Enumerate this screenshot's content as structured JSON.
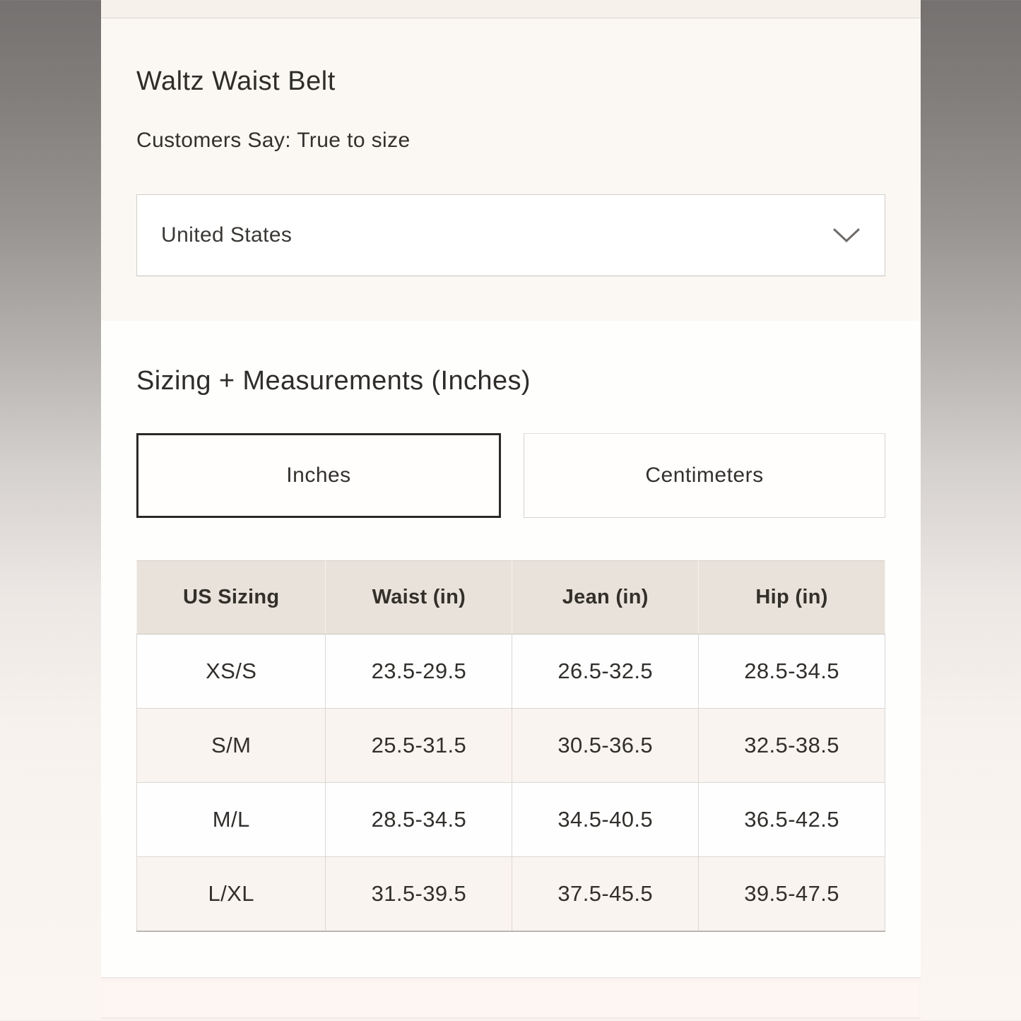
{
  "product": {
    "title": "Waltz Waist Belt",
    "fit_note": "Customers Say: True to size"
  },
  "region_select": {
    "value": "United States",
    "icon": "chevron-down"
  },
  "sizing_section": {
    "heading": "Sizing + Measurements (Inches)",
    "tabs": [
      {
        "label": "Inches",
        "selected": true
      },
      {
        "label": "Centimeters",
        "selected": false
      }
    ]
  },
  "size_table": {
    "columns": [
      "US Sizing",
      "Waist (in)",
      "Jean (in)",
      "Hip (in)"
    ],
    "rows": [
      [
        "XS/S",
        "23.5-29.5",
        "26.5-32.5",
        "28.5-34.5"
      ],
      [
        "S/M",
        "25.5-31.5",
        "30.5-36.5",
        "32.5-38.5"
      ],
      [
        "M/L",
        "28.5-34.5",
        "34.5-40.5",
        "36.5-42.5"
      ],
      [
        "L/XL",
        "31.5-39.5",
        "37.5-45.5",
        "39.5-47.5"
      ]
    ]
  },
  "colors": {
    "selected_tab_border": "#2b2927",
    "table_header_bg": "#e8e2da",
    "table_alt_row_bg": "#faf4f0",
    "section_cream_bg": "#fbf8f4"
  }
}
